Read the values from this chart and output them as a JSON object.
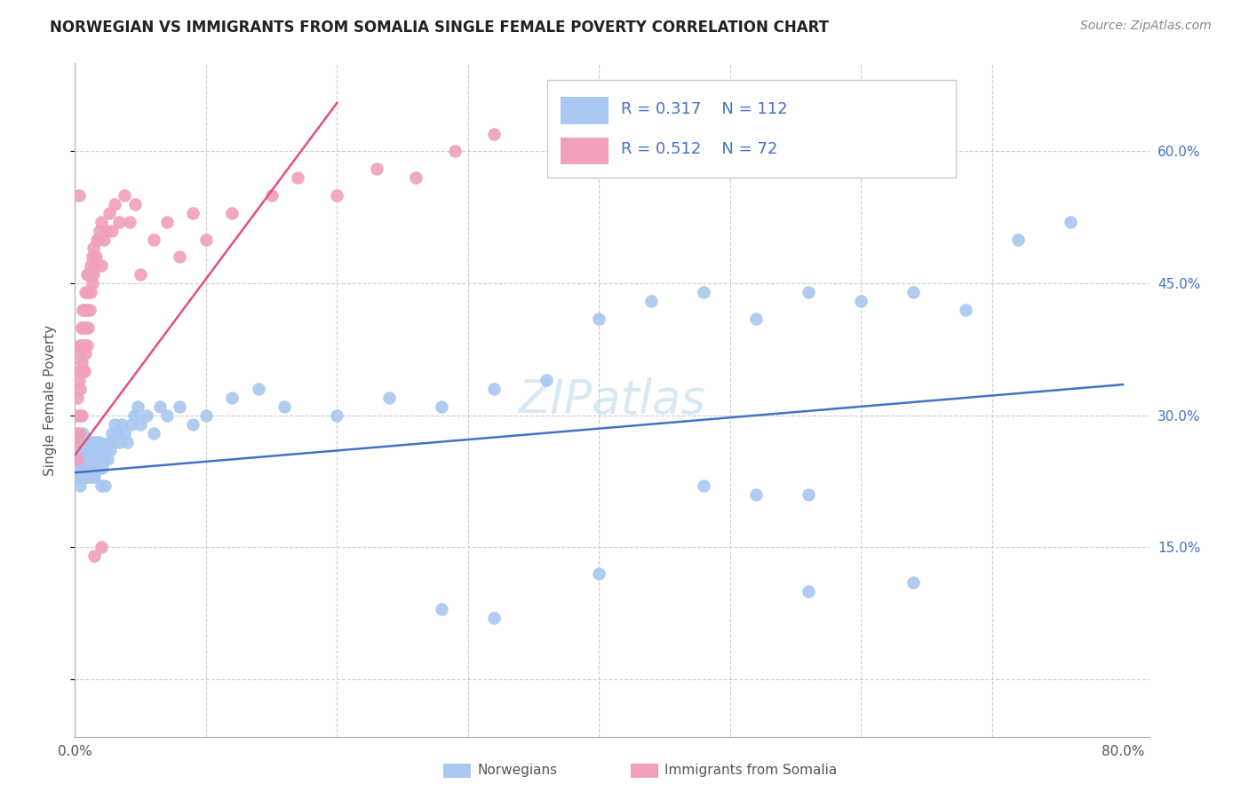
{
  "title": "NORWEGIAN VS IMMIGRANTS FROM SOMALIA SINGLE FEMALE POVERTY CORRELATION CHART",
  "source": "Source: ZipAtlas.com",
  "ylabel": "Single Female Poverty",
  "norwegians_R": 0.317,
  "norwegians_N": 112,
  "somalia_R": 0.512,
  "somalia_N": 72,
  "norwegian_color": "#a8c8f0",
  "somalia_color": "#f0a0b8",
  "norwegian_line_color": "#4472c4",
  "somalia_line_color": "#e05080",
  "legend_text_color": "#4472c4",
  "watermark": "ZIPatlas",
  "norwegians_x": [
    0.001,
    0.002,
    0.002,
    0.003,
    0.003,
    0.003,
    0.004,
    0.004,
    0.004,
    0.004,
    0.005,
    0.005,
    0.005,
    0.005,
    0.005,
    0.006,
    0.006,
    0.006,
    0.006,
    0.007,
    0.007,
    0.007,
    0.007,
    0.008,
    0.008,
    0.008,
    0.008,
    0.009,
    0.009,
    0.009,
    0.009,
    0.01,
    0.01,
    0.01,
    0.01,
    0.01,
    0.011,
    0.011,
    0.011,
    0.012,
    0.012,
    0.012,
    0.013,
    0.013,
    0.013,
    0.014,
    0.014,
    0.015,
    0.015,
    0.015,
    0.016,
    0.016,
    0.017,
    0.017,
    0.018,
    0.018,
    0.019,
    0.019,
    0.02,
    0.02,
    0.021,
    0.022,
    0.023,
    0.024,
    0.025,
    0.026,
    0.027,
    0.028,
    0.029,
    0.03,
    0.032,
    0.034,
    0.036,
    0.038,
    0.04,
    0.043,
    0.045,
    0.048,
    0.05,
    0.055,
    0.06,
    0.065,
    0.07,
    0.08,
    0.09,
    0.1,
    0.12,
    0.14,
    0.16,
    0.2,
    0.24,
    0.28,
    0.32,
    0.36,
    0.4,
    0.44,
    0.48,
    0.52,
    0.56,
    0.6,
    0.64,
    0.68,
    0.72,
    0.76,
    0.48,
    0.52,
    0.56,
    0.4,
    0.56,
    0.64,
    0.28,
    0.32
  ],
  "norwegians_y": [
    0.24,
    0.23,
    0.25,
    0.24,
    0.26,
    0.23,
    0.25,
    0.24,
    0.22,
    0.27,
    0.25,
    0.24,
    0.26,
    0.23,
    0.25,
    0.24,
    0.26,
    0.23,
    0.28,
    0.25,
    0.24,
    0.27,
    0.23,
    0.25,
    0.24,
    0.27,
    0.23,
    0.26,
    0.24,
    0.27,
    0.23,
    0.25,
    0.24,
    0.26,
    0.23,
    0.25,
    0.27,
    0.24,
    0.23,
    0.26,
    0.25,
    0.24,
    0.27,
    0.25,
    0.23,
    0.26,
    0.24,
    0.27,
    0.25,
    0.23,
    0.26,
    0.24,
    0.27,
    0.25,
    0.26,
    0.24,
    0.27,
    0.25,
    0.26,
    0.22,
    0.24,
    0.25,
    0.22,
    0.26,
    0.25,
    0.27,
    0.26,
    0.28,
    0.27,
    0.29,
    0.28,
    0.27,
    0.29,
    0.28,
    0.27,
    0.29,
    0.3,
    0.31,
    0.29,
    0.3,
    0.28,
    0.31,
    0.3,
    0.31,
    0.29,
    0.3,
    0.32,
    0.33,
    0.31,
    0.3,
    0.32,
    0.31,
    0.33,
    0.34,
    0.41,
    0.43,
    0.44,
    0.41,
    0.44,
    0.43,
    0.44,
    0.42,
    0.5,
    0.52,
    0.22,
    0.21,
    0.21,
    0.12,
    0.1,
    0.11,
    0.08,
    0.07
  ],
  "somalia_x": [
    0.001,
    0.001,
    0.002,
    0.002,
    0.002,
    0.003,
    0.003,
    0.003,
    0.003,
    0.004,
    0.004,
    0.004,
    0.005,
    0.005,
    0.005,
    0.005,
    0.006,
    0.006,
    0.006,
    0.007,
    0.007,
    0.007,
    0.008,
    0.008,
    0.008,
    0.009,
    0.009,
    0.009,
    0.01,
    0.01,
    0.01,
    0.011,
    0.011,
    0.012,
    0.012,
    0.013,
    0.013,
    0.014,
    0.014,
    0.015,
    0.016,
    0.017,
    0.018,
    0.019,
    0.02,
    0.02,
    0.022,
    0.024,
    0.026,
    0.028,
    0.03,
    0.034,
    0.038,
    0.042,
    0.046,
    0.05,
    0.06,
    0.07,
    0.08,
    0.09,
    0.1,
    0.12,
    0.15,
    0.17,
    0.2,
    0.23,
    0.26,
    0.29,
    0.32,
    0.003,
    0.015,
    0.02
  ],
  "somalia_y": [
    0.27,
    0.3,
    0.25,
    0.28,
    0.32,
    0.3,
    0.34,
    0.28,
    0.37,
    0.33,
    0.38,
    0.35,
    0.36,
    0.4,
    0.3,
    0.38,
    0.4,
    0.35,
    0.42,
    0.38,
    0.42,
    0.35,
    0.4,
    0.44,
    0.37,
    0.42,
    0.46,
    0.38,
    0.44,
    0.4,
    0.46,
    0.42,
    0.46,
    0.44,
    0.47,
    0.45,
    0.48,
    0.46,
    0.49,
    0.47,
    0.48,
    0.5,
    0.5,
    0.51,
    0.47,
    0.52,
    0.5,
    0.51,
    0.53,
    0.51,
    0.54,
    0.52,
    0.55,
    0.52,
    0.54,
    0.46,
    0.5,
    0.52,
    0.48,
    0.53,
    0.5,
    0.53,
    0.55,
    0.57,
    0.55,
    0.58,
    0.57,
    0.6,
    0.62,
    0.55,
    0.14,
    0.15
  ],
  "xlim": [
    0.0,
    0.82
  ],
  "ylim": [
    -0.065,
    0.7
  ],
  "x_ticks": [
    0.0,
    0.1,
    0.2,
    0.3,
    0.4,
    0.5,
    0.6,
    0.7,
    0.8
  ],
  "y_ticks": [
    0.0,
    0.15,
    0.3,
    0.45,
    0.6
  ]
}
